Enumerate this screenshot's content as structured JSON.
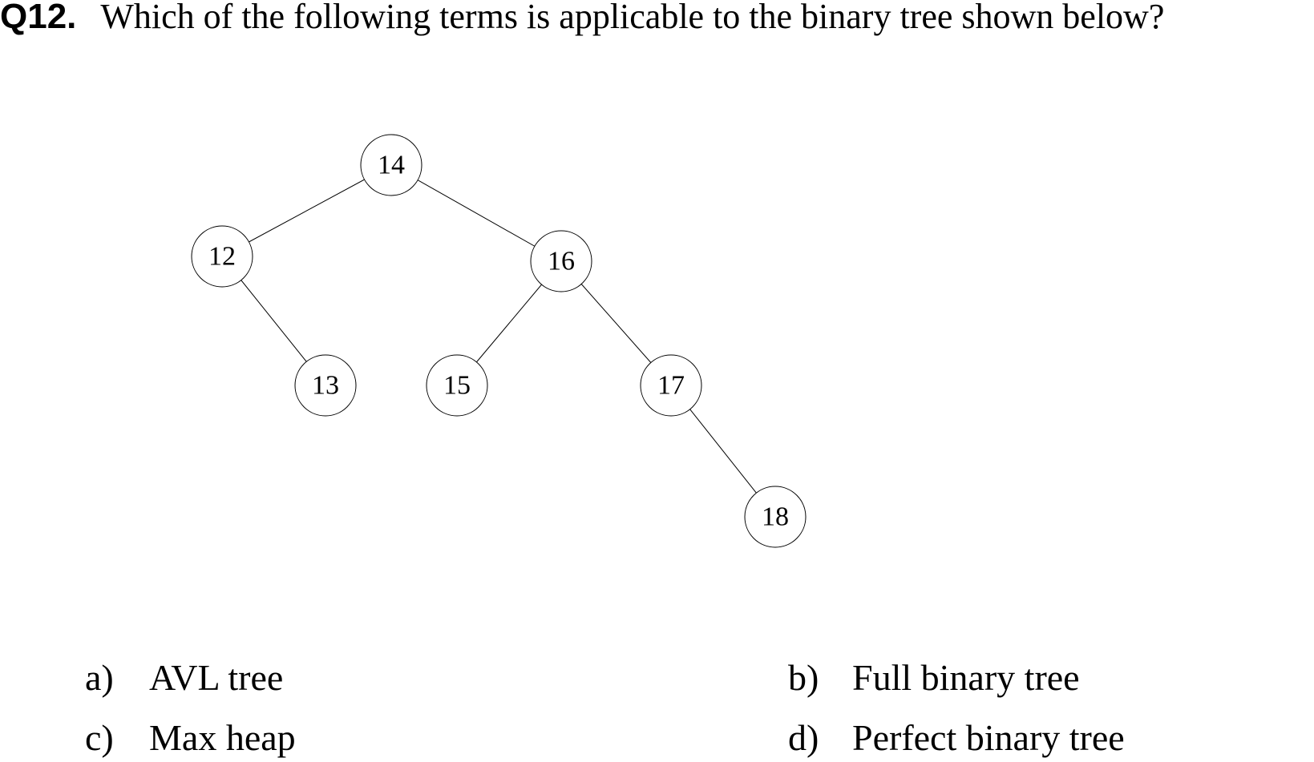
{
  "question": {
    "number": "Q12.",
    "text": "Which of the following terms is applicable to the binary tree shown below?"
  },
  "tree": {
    "nodes": [
      {
        "id": "n14",
        "label": "14"
      },
      {
        "id": "n12",
        "label": "12"
      },
      {
        "id": "n16",
        "label": "16"
      },
      {
        "id": "n13",
        "label": "13"
      },
      {
        "id": "n15",
        "label": "15"
      },
      {
        "id": "n17",
        "label": "17"
      },
      {
        "id": "n18",
        "label": "18"
      }
    ],
    "edges": [
      {
        "from": "n14",
        "to": "n12"
      },
      {
        "from": "n14",
        "to": "n16"
      },
      {
        "from": "n12",
        "to": "n13"
      },
      {
        "from": "n16",
        "to": "n15"
      },
      {
        "from": "n16",
        "to": "n17"
      },
      {
        "from": "n17",
        "to": "n18"
      }
    ]
  },
  "options": [
    {
      "letter": "a)",
      "text": "AVL tree"
    },
    {
      "letter": "b)",
      "text": "Full binary tree"
    },
    {
      "letter": "c)",
      "text": "Max heap"
    },
    {
      "letter": "d)",
      "text": "Perfect binary tree"
    }
  ]
}
